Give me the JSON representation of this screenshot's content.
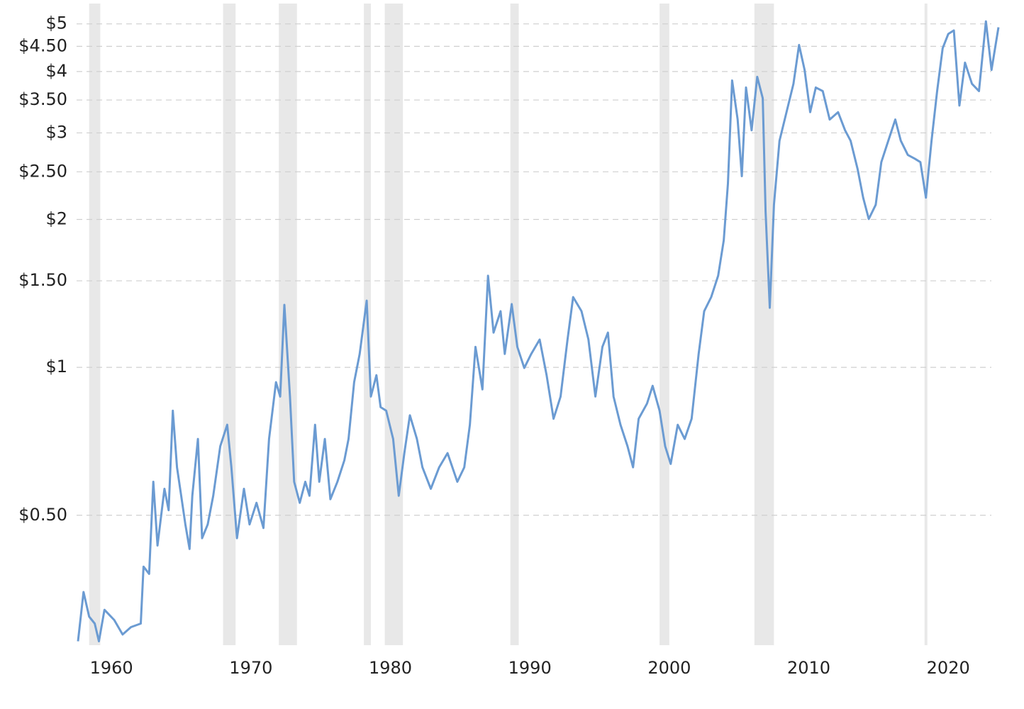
{
  "chart_data": {
    "type": "line",
    "log_y": true,
    "grid": true,
    "xlim": [
      1957.5,
      2023.6
    ],
    "ylim": [
      0.272,
      5.5
    ],
    "xticks": [
      1960,
      1970,
      1980,
      1990,
      2000,
      2010,
      2020
    ],
    "yticks": [
      {
        "value": 0.5,
        "label": "$0.50"
      },
      {
        "value": 1,
        "label": "$1"
      },
      {
        "value": 1.5,
        "label": "$1.50"
      },
      {
        "value": 2,
        "label": "$2"
      },
      {
        "value": 2.5,
        "label": "$2.50"
      },
      {
        "value": 3,
        "label": "$3"
      },
      {
        "value": 3.5,
        "label": "$3.50"
      },
      {
        "value": 4,
        "label": "$4"
      },
      {
        "value": 4.5,
        "label": "$4.50"
      },
      {
        "value": 5,
        "label": "$5"
      }
    ],
    "shaded_ranges": [
      [
        1958.4,
        1959.2
      ],
      [
        1968.0,
        1968.9
      ],
      [
        1972.0,
        1973.3
      ],
      [
        1978.1,
        1978.6
      ],
      [
        1979.6,
        1980.9
      ],
      [
        1988.6,
        1989.2
      ],
      [
        1999.3,
        2000.0
      ],
      [
        2006.1,
        2007.5
      ],
      [
        2018.3,
        2018.5
      ]
    ],
    "shade_color": "#e8e8e8",
    "series": [
      {
        "color": "#6b9bd2",
        "x": [
          1957.6,
          1958.0,
          1958.4,
          1958.8,
          1959.1,
          1959.5,
          1960.2,
          1960.8,
          1961.4,
          1962.1,
          1962.3,
          1962.7,
          1963.0,
          1963.3,
          1963.8,
          1964.1,
          1964.4,
          1964.7,
          1965.0,
          1965.3,
          1965.6,
          1965.8,
          1966.2,
          1966.5,
          1966.9,
          1967.3,
          1967.8,
          1968.3,
          1968.6,
          1969.0,
          1969.5,
          1969.9,
          1970.4,
          1970.9,
          1971.3,
          1971.8,
          1972.1,
          1972.4,
          1972.8,
          1973.1,
          1973.5,
          1973.9,
          1974.2,
          1974.6,
          1974.9,
          1975.3,
          1975.7,
          1976.2,
          1976.7,
          1977.0,
          1977.4,
          1977.8,
          1978.3,
          1978.6,
          1979.0,
          1979.3,
          1979.7,
          1980.2,
          1980.6,
          1981.0,
          1981.4,
          1981.9,
          1982.3,
          1982.9,
          1983.5,
          1984.1,
          1984.8,
          1985.3,
          1985.7,
          1986.1,
          1986.6,
          1987.0,
          1987.4,
          1987.9,
          1988.2,
          1988.7,
          1989.1,
          1989.6,
          1990.1,
          1990.7,
          1991.2,
          1991.7,
          1992.2,
          1992.7,
          1993.1,
          1993.7,
          1994.2,
          1994.7,
          1995.2,
          1995.6,
          1996.0,
          1996.5,
          1997.0,
          1997.4,
          1997.8,
          1998.4,
          1998.8,
          1999.3,
          1999.7,
          2000.1,
          2000.6,
          2001.1,
          2001.6,
          2002.1,
          2002.5,
          2003.0,
          2003.5,
          2003.9,
          2004.2,
          2004.5,
          2004.9,
          2005.2,
          2005.5,
          2005.9,
          2006.3,
          2006.7,
          2006.9,
          2007.2,
          2007.5,
          2007.9,
          2008.4,
          2008.9,
          2009.3,
          2009.7,
          2010.1,
          2010.5,
          2011.0,
          2011.5,
          2012.1,
          2012.6,
          2013.0,
          2013.5,
          2013.9,
          2014.3,
          2014.8,
          2015.2,
          2015.7,
          2016.2,
          2016.6,
          2017.1,
          2017.6,
          2018.0,
          2018.4,
          2018.8,
          2019.2,
          2019.6,
          2020.0,
          2020.4,
          2020.8,
          2021.2,
          2021.7,
          2022.2,
          2022.7,
          2023.1,
          2023.6
        ],
        "values": [
          0.277,
          0.349,
          0.311,
          0.301,
          0.277,
          0.321,
          0.306,
          0.286,
          0.296,
          0.301,
          0.393,
          0.38,
          0.585,
          0.434,
          0.566,
          0.512,
          0.816,
          0.626,
          0.548,
          0.479,
          0.427,
          0.548,
          0.715,
          0.449,
          0.479,
          0.548,
          0.691,
          0.764,
          0.626,
          0.449,
          0.566,
          0.479,
          0.53,
          0.471,
          0.715,
          0.933,
          0.872,
          1.34,
          0.872,
          0.585,
          0.53,
          0.585,
          0.548,
          0.764,
          0.585,
          0.715,
          0.539,
          0.585,
          0.647,
          0.715,
          0.933,
          1.065,
          1.367,
          0.872,
          0.964,
          0.83,
          0.816,
          0.715,
          0.548,
          0.669,
          0.799,
          0.715,
          0.626,
          0.566,
          0.626,
          0.669,
          0.585,
          0.626,
          0.764,
          1.101,
          0.902,
          1.536,
          1.177,
          1.301,
          1.065,
          1.345,
          1.101,
          0.997,
          1.065,
          1.139,
          0.964,
          0.786,
          0.872,
          1.139,
          1.39,
          1.301,
          1.139,
          0.872,
          1.101,
          1.177,
          0.872,
          0.764,
          0.691,
          0.626,
          0.786,
          0.844,
          0.917,
          0.816,
          0.691,
          0.636,
          0.764,
          0.715,
          0.786,
          1.065,
          1.301,
          1.39,
          1.536,
          1.813,
          2.366,
          3.836,
          3.194,
          2.449,
          3.711,
          3.037,
          3.901,
          3.528,
          2.073,
          1.322,
          2.142,
          2.891,
          3.306,
          3.776,
          4.53,
          4.03,
          3.306,
          3.711,
          3.649,
          3.194,
          3.306,
          3.037,
          2.891,
          2.531,
          2.215,
          2.004,
          2.142,
          2.616,
          2.891,
          3.194,
          2.891,
          2.705,
          2.659,
          2.616,
          2.215,
          2.891,
          3.649,
          4.46,
          4.77,
          4.85,
          3.41,
          4.17,
          3.776,
          3.649,
          5.06,
          4.03,
          4.92
        ]
      }
    ]
  }
}
